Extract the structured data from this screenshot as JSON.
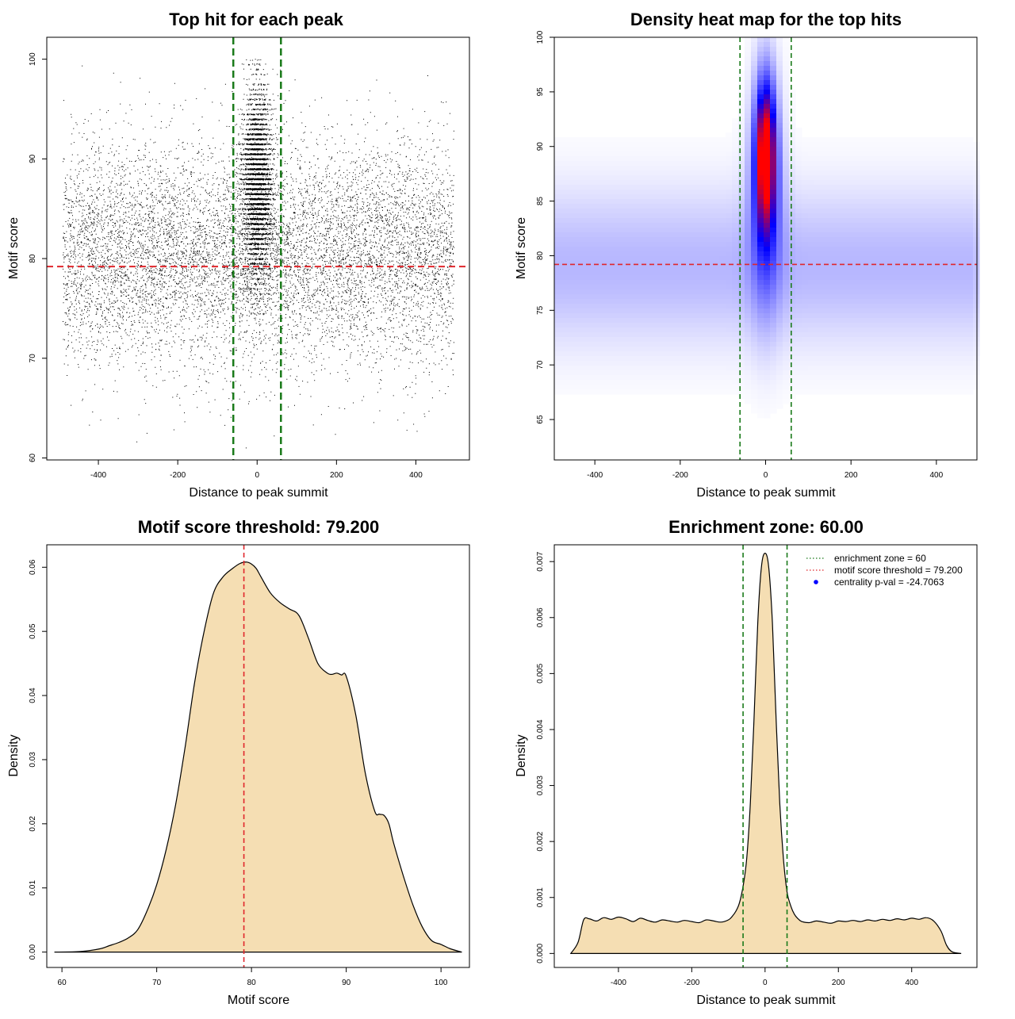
{
  "chart_data": [
    {
      "id": "scatter",
      "type": "scatter",
      "title": "Top hit for each peak",
      "xlabel": "Distance to peak summit",
      "ylabel": "Motif score",
      "xlim": [
        -530,
        535
      ],
      "ylim": [
        59.8,
        102.2
      ],
      "xticks": [
        -400,
        -200,
        0,
        200,
        400
      ],
      "yticks": [
        60,
        70,
        80,
        90,
        100
      ],
      "hline": {
        "y": 79.2,
        "color": "#e0262b"
      },
      "vlines": {
        "x": [
          -60,
          60
        ],
        "color": "#1a7a1a"
      },
      "background_points": {
        "x_range": [
          -490,
          495
        ],
        "score_mean": 80.5,
        "score_sd": 5.5,
        "approx_count": 9000
      },
      "central_points": {
        "x_range": [
          -60,
          60
        ],
        "score_mean": 87.5,
        "score_sd": 4.5,
        "score_max": 100,
        "approx_count": 5000
      },
      "grid": false
    },
    {
      "id": "heatmap",
      "type": "heatmap",
      "title": "Density heat map for the top hits",
      "xlabel": "Distance to peak summit",
      "ylabel": "Motif score",
      "xlim": [
        -495,
        495
      ],
      "ylim": [
        61.3,
        100
      ],
      "xticks": [
        -400,
        -200,
        0,
        200,
        400
      ],
      "yticks": [
        65,
        70,
        75,
        80,
        85,
        90,
        95,
        100
      ],
      "hline": {
        "y": 79.2,
        "color": "#e0262b"
      },
      "vlines": {
        "x": [
          -60,
          60
        ],
        "color": "#1a7a1a"
      },
      "colors": {
        "low": "#ffffff",
        "mid": "#0000ff",
        "high": "#ff0000"
      },
      "hot_spot": {
        "x": 0,
        "score": 89.5
      },
      "grid": false
    },
    {
      "id": "score_density",
      "type": "area",
      "title": "Motif score threshold: 79.200",
      "xlabel": "Motif score",
      "ylabel": "Density",
      "xlim": [
        58.4,
        103
      ],
      "ylim": [
        -0.0024,
        0.0635
      ],
      "xticks": [
        60,
        70,
        80,
        90,
        100
      ],
      "yticks": [
        0.0,
        0.01,
        0.02,
        0.03,
        0.04,
        0.05,
        0.06
      ],
      "ytick_labels": [
        "0.00",
        "0.01",
        "0.02",
        "0.03",
        "0.04",
        "0.05",
        "0.06"
      ],
      "vline": {
        "x": 79.2,
        "color": "#e0262b"
      },
      "fill": "#f5deb3",
      "x": [
        59.2,
        62,
        64,
        65,
        66,
        67,
        68,
        69,
        70,
        71,
        72,
        73,
        74,
        75,
        76,
        77,
        78,
        78.8,
        79.5,
        80,
        80.5,
        81,
        82,
        83,
        84,
        85,
        86,
        87,
        88,
        88.5,
        89,
        89.5,
        90,
        91,
        92,
        93,
        93.5,
        94,
        94.5,
        95,
        96,
        97,
        98,
        99,
        100,
        101,
        102.2
      ],
      "y": [
        0.0,
        0.0001,
        0.0005,
        0.001,
        0.0015,
        0.0022,
        0.0035,
        0.0065,
        0.0105,
        0.016,
        0.023,
        0.032,
        0.042,
        0.05,
        0.056,
        0.0585,
        0.0598,
        0.0606,
        0.0608,
        0.0605,
        0.0598,
        0.0585,
        0.056,
        0.0545,
        0.0535,
        0.0525,
        0.049,
        0.045,
        0.0435,
        0.0433,
        0.0435,
        0.0432,
        0.043,
        0.037,
        0.028,
        0.022,
        0.0215,
        0.0213,
        0.02,
        0.017,
        0.012,
        0.0075,
        0.004,
        0.0018,
        0.0012,
        0.0005,
        0.0
      ]
    },
    {
      "id": "distance_density",
      "type": "area",
      "title": "Enrichment zone: 60.00",
      "xlabel": "Distance to peak summit",
      "ylabel": "Density",
      "xlim": [
        -575,
        578
      ],
      "ylim": [
        -0.00025,
        0.0073
      ],
      "xticks": [
        -400,
        -200,
        0,
        200,
        400
      ],
      "yticks": [
        0.0,
        0.001,
        0.002,
        0.003,
        0.004,
        0.005,
        0.006,
        0.007
      ],
      "ytick_labels": [
        "0.000",
        "0.001",
        "0.002",
        "0.003",
        "0.004",
        "0.005",
        "0.006",
        "0.007"
      ],
      "vlines": {
        "x": [
          -60,
          60
        ],
        "color": "#1a7a1a"
      },
      "fill": "#f5deb3",
      "x": [
        -530,
        -510,
        -495,
        -480,
        -460,
        -440,
        -420,
        -400,
        -380,
        -360,
        -340,
        -320,
        -300,
        -280,
        -260,
        -240,
        -220,
        -200,
        -180,
        -160,
        -140,
        -120,
        -100,
        -90,
        -80,
        -70,
        -60,
        -50,
        -40,
        -30,
        -20,
        -10,
        0,
        10,
        20,
        30,
        40,
        50,
        60,
        70,
        80,
        90,
        100,
        120,
        140,
        160,
        180,
        200,
        220,
        240,
        260,
        280,
        300,
        320,
        340,
        360,
        380,
        400,
        420,
        440,
        460,
        480,
        495,
        510,
        535
      ],
      "y": [
        0.0,
        0.0002,
        0.0006,
        0.00062,
        0.00058,
        0.00064,
        0.00061,
        0.00065,
        0.00062,
        0.00057,
        0.00063,
        0.00059,
        0.00056,
        0.0006,
        0.00058,
        0.00056,
        0.00059,
        0.00057,
        0.00055,
        0.0006,
        0.00058,
        0.00056,
        0.0006,
        0.00066,
        0.00075,
        0.0009,
        0.0012,
        0.0017,
        0.0027,
        0.0042,
        0.0059,
        0.0069,
        0.00715,
        0.0069,
        0.0059,
        0.0042,
        0.0027,
        0.0017,
        0.0011,
        0.00085,
        0.0007,
        0.00062,
        0.00057,
        0.00055,
        0.00058,
        0.00056,
        0.00054,
        0.00058,
        0.00057,
        0.00059,
        0.00057,
        0.0006,
        0.00058,
        0.00061,
        0.00059,
        0.00062,
        0.0006,
        0.00063,
        0.00061,
        0.00064,
        0.00058,
        0.0004,
        0.00015,
        3e-05,
        0.0
      ],
      "legend": {
        "position": "top-right",
        "entries": [
          {
            "label": "enrichment zone = 60",
            "color": "#1a7a1a",
            "style": "dotted-line"
          },
          {
            "label": "motif score threshold = 79.200",
            "color": "#e0262b",
            "style": "dotted-line"
          },
          {
            "label": "centrality p-val = -24.7063",
            "color": "#0000ff",
            "style": "point"
          }
        ]
      }
    }
  ]
}
